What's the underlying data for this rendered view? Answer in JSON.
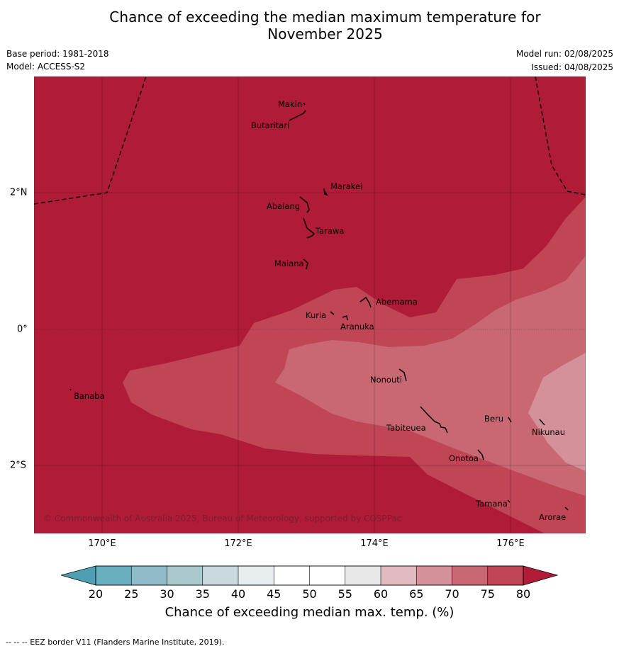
{
  "title_line1": "Chance of exceeding the median maximum temperature for",
  "title_line2": "November 2025",
  "base_period": "Base period: 1981-2018",
  "model": "Model: ACCESS-S2",
  "model_run": "Model run: 02/08/2025",
  "issued": "Issued: 04/08/2025",
  "map": {
    "lon_labels": [
      "170°E",
      "172°E",
      "174°E",
      "176°E"
    ],
    "lat_labels": [
      "2°N",
      "0°",
      "2°S"
    ],
    "places": {
      "makin": "Makin",
      "butaritari": "Butaritari",
      "marakei": "Marakei",
      "abaiang": "Abaiang",
      "tarawa": "Tarawa",
      "maiana": "Maiana",
      "abemama": "Abemama",
      "kuria": "Kuria",
      "aranuka": "Aranuka",
      "nonouti": "Nonouti",
      "banaba": "Banaba",
      "beru": "Beru",
      "nikunau": "Nikunau",
      "tabiteuea": "Tabiteuea",
      "onotoa": "Onotoa",
      "tamana": "Tamana",
      "arorae": "Arorae"
    },
    "credit": "© Commonwealth of Australia 2025, Bureau of Meteorology, supported by COSPPac",
    "shading_colors": {
      "80_plus": "#b01c37",
      "75_80": "#c04555",
      "70_75": "#c96873",
      "65_70": "#d4919a"
    }
  },
  "colorbar": {
    "ticks": [
      "20",
      "25",
      "30",
      "35",
      "40",
      "45",
      "50",
      "55",
      "60",
      "65",
      "70",
      "75",
      "80"
    ],
    "colors": [
      "#6aafbf",
      "#8fbcc7",
      "#a9c9cf",
      "#c8dade",
      "#e8eef0",
      "#ffffff",
      "#ffffff",
      "#e8e8e8",
      "#e2bac1",
      "#d4919a",
      "#c96873",
      "#c04555"
    ],
    "low_extend_color": "#4f9fb2",
    "high_extend_color": "#b01c37",
    "label": "Chance of exceeding median max. temp. (%)"
  },
  "footer": "--  --  -- EEZ border V11 (Flanders Marine Institute, 2019)."
}
